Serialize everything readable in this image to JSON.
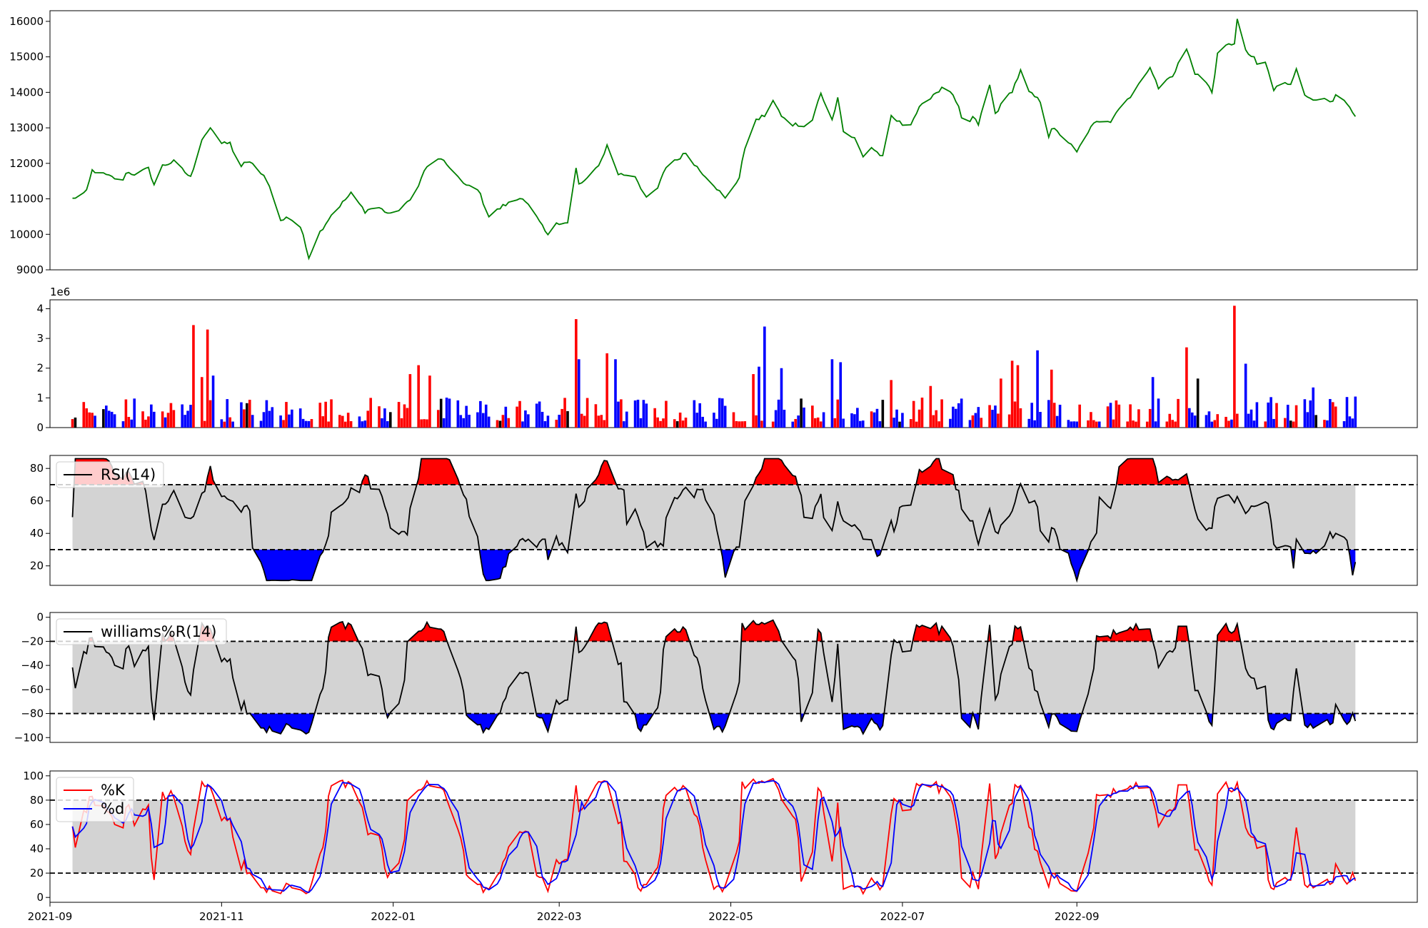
{
  "chart_data": [
    {
      "id": "price",
      "type": "line",
      "series": [
        {
          "color": "#008000",
          "values": []
        }
      ],
      "ylim": [
        9000,
        16300
      ],
      "yticks": [
        "9000",
        "10000",
        "11000",
        "12000",
        "13000",
        "14000",
        "15000",
        "16000"
      ],
      "anchors": [
        [
          "2021-09-09",
          11000
        ],
        [
          "2021-09-14",
          11200
        ],
        [
          "2021-09-16",
          11800
        ],
        [
          "2021-09-27",
          11500
        ],
        [
          "2021-09-28",
          11750
        ],
        [
          "2021-10-01",
          11700
        ],
        [
          "2021-10-06",
          11850
        ],
        [
          "2021-10-08",
          11400
        ],
        [
          "2021-10-10",
          11900
        ],
        [
          "2021-10-15",
          12050
        ],
        [
          "2021-10-21",
          11600
        ],
        [
          "2021-10-25",
          12700
        ],
        [
          "2021-10-28",
          13000
        ],
        [
          "2021-10-31",
          12550
        ],
        [
          "2021-11-04",
          12600
        ],
        [
          "2021-11-07",
          11700
        ],
        [
          "2021-11-09",
          12050
        ],
        [
          "2021-11-13",
          11950
        ],
        [
          "2021-11-17",
          11550
        ],
        [
          "2021-11-20",
          10900
        ],
        [
          "2021-11-21",
          10300
        ],
        [
          "2021-11-24",
          10500
        ],
        [
          "2021-11-28",
          10300
        ],
        [
          "2021-11-30",
          10000
        ],
        [
          "2021-12-02",
          9350
        ],
        [
          "2021-12-05",
          9950
        ],
        [
          "2021-12-10",
          10550
        ],
        [
          "2021-12-17",
          11150
        ],
        [
          "2021-12-22",
          10650
        ],
        [
          "2021-12-26",
          10800
        ],
        [
          "2021-12-31",
          10550
        ],
        [
          "2022-01-05",
          10800
        ],
        [
          "2022-01-10",
          11350
        ],
        [
          "2022-01-12",
          11800
        ],
        [
          "2022-01-17",
          12150
        ],
        [
          "2022-01-22",
          11850
        ],
        [
          "2022-01-26",
          11400
        ],
        [
          "2022-01-31",
          11300
        ],
        [
          "2022-02-04",
          10500
        ],
        [
          "2022-02-09",
          10800
        ],
        [
          "2022-02-16",
          11050
        ],
        [
          "2022-02-20",
          10600
        ],
        [
          "2022-02-25",
          9950
        ],
        [
          "2022-02-27",
          10350
        ],
        [
          "2022-03-05",
          10300
        ],
        [
          "2022-03-07",
          11850
        ],
        [
          "2022-03-08",
          11400
        ],
        [
          "2022-03-12",
          11600
        ],
        [
          "2022-03-16",
          12100
        ],
        [
          "2022-03-18",
          12500
        ],
        [
          "2022-03-22",
          11700
        ],
        [
          "2022-03-28",
          11650
        ],
        [
          "2022-04-01",
          11000
        ],
        [
          "2022-04-05",
          11300
        ],
        [
          "2022-04-09",
          12100
        ],
        [
          "2022-04-12",
          12100
        ],
        [
          "2022-04-15",
          12300
        ],
        [
          "2022-04-20",
          11800
        ],
        [
          "2022-04-24",
          11500
        ],
        [
          "2022-04-29",
          11000
        ],
        [
          "2022-05-04",
          11600
        ],
        [
          "2022-05-07",
          12850
        ],
        [
          "2022-05-10",
          13200
        ],
        [
          "2022-05-14",
          13400
        ],
        [
          "2022-05-16",
          13800
        ],
        [
          "2022-05-18",
          13450
        ],
        [
          "2022-05-22",
          13050
        ],
        [
          "2022-05-24",
          13100
        ],
        [
          "2022-05-29",
          12950
        ],
        [
          "2022-06-02",
          14000
        ],
        [
          "2022-06-06",
          13200
        ],
        [
          "2022-06-08",
          13900
        ],
        [
          "2022-06-10",
          12900
        ],
        [
          "2022-06-14",
          12700
        ],
        [
          "2022-06-17",
          12200
        ],
        [
          "2022-06-20",
          12450
        ],
        [
          "2022-06-25",
          12100
        ],
        [
          "2022-06-27",
          13300
        ],
        [
          "2022-07-03",
          13000
        ],
        [
          "2022-07-07",
          13550
        ],
        [
          "2022-07-12",
          13950
        ],
        [
          "2022-07-17",
          14200
        ],
        [
          "2022-07-21",
          13550
        ],
        [
          "2022-07-23",
          12950
        ],
        [
          "2022-07-26",
          13300
        ],
        [
          "2022-07-28",
          13100
        ],
        [
          "2022-08-01",
          14200
        ],
        [
          "2022-08-03",
          13400
        ],
        [
          "2022-08-06",
          13750
        ],
        [
          "2022-08-09",
          14050
        ],
        [
          "2022-08-12",
          14600
        ],
        [
          "2022-08-15",
          14000
        ],
        [
          "2022-08-19",
          13750
        ],
        [
          "2022-08-21",
          12550
        ],
        [
          "2022-08-23",
          13000
        ],
        [
          "2022-08-28",
          12700
        ],
        [
          "2022-09-01",
          12300
        ],
        [
          "2022-09-04",
          12800
        ],
        [
          "2022-09-07",
          13100
        ],
        [
          "2022-09-10",
          13250
        ],
        [
          "2022-09-13",
          13200
        ],
        [
          "2022-09-15",
          13450
        ],
        [
          "2022-09-20",
          13900
        ],
        [
          "2022-09-24",
          14300
        ],
        [
          "2022-09-27",
          14750
        ],
        [
          "2022-09-30",
          14100
        ],
        [
          "2022-10-03",
          14350
        ],
        [
          "2022-10-06",
          14550
        ],
        [
          "2022-10-09",
          15400
        ],
        [
          "2022-10-11",
          15000
        ],
        [
          "2022-10-13",
          14550
        ],
        [
          "2022-10-16",
          14400
        ],
        [
          "2022-10-19",
          14000
        ],
        [
          "2022-10-21",
          15050
        ],
        [
          "2022-10-24",
          15300
        ],
        [
          "2022-10-27",
          15400
        ],
        [
          "2022-10-28",
          16050
        ],
        [
          "2022-10-31",
          15150
        ],
        [
          "2022-11-03",
          14950
        ],
        [
          "2022-11-05",
          14600
        ],
        [
          "2022-11-07",
          14850
        ],
        [
          "2022-11-10",
          14050
        ],
        [
          "2022-11-12",
          14250
        ],
        [
          "2022-11-16",
          14250
        ],
        [
          "2022-11-18",
          14700
        ],
        [
          "2022-11-20",
          13900
        ],
        [
          "2022-11-23",
          13850
        ],
        [
          "2022-11-27",
          13800
        ],
        [
          "2022-12-01",
          13700
        ],
        [
          "2022-12-03",
          14100
        ],
        [
          "2022-12-05",
          13750
        ],
        [
          "2022-12-09",
          13300
        ]
      ]
    },
    {
      "id": "volume",
      "type": "bar",
      "ylim": [
        0,
        4.3
      ],
      "yticks": [
        "0",
        "1",
        "2",
        "3",
        "4"
      ],
      "offset_label": "1e6",
      "up_color": "#ff0000",
      "down_color": "#0000ff",
      "flat_color": "#000000",
      "spikes": [
        [
          "2021-10-23",
          3.45
        ],
        [
          "2021-10-27",
          3.3
        ],
        [
          "2021-10-25",
          1.7
        ],
        [
          "2021-10-29",
          1.75
        ],
        [
          "2022-01-07",
          1.8
        ],
        [
          "2022-01-10",
          2.1
        ],
        [
          "2022-01-15",
          1.75
        ],
        [
          "2022-03-06",
          3.65
        ],
        [
          "2022-03-08",
          2.3
        ],
        [
          "2022-03-18",
          2.5
        ],
        [
          "2022-03-21",
          2.3
        ],
        [
          "2022-04-09",
          0.9
        ],
        [
          "2022-05-09",
          1.8
        ],
        [
          "2022-05-11",
          2.05
        ],
        [
          "2022-05-13",
          3.4
        ],
        [
          "2022-05-19",
          2.0
        ],
        [
          "2022-06-05",
          2.3
        ],
        [
          "2022-06-09",
          2.2
        ],
        [
          "2022-06-26",
          1.6
        ],
        [
          "2022-07-11",
          1.4
        ],
        [
          "2022-08-06",
          1.65
        ],
        [
          "2022-08-09",
          2.25
        ],
        [
          "2022-08-11",
          2.1
        ],
        [
          "2022-08-18",
          2.6
        ],
        [
          "2022-08-23",
          1.95
        ],
        [
          "2022-09-28",
          1.7
        ],
        [
          "2022-10-09",
          2.7
        ],
        [
          "2022-10-14",
          1.65
        ],
        [
          "2022-10-27",
          4.1
        ],
        [
          "2022-10-30",
          2.15
        ],
        [
          "2022-11-24",
          1.35
        ]
      ]
    },
    {
      "id": "rsi",
      "type": "line",
      "legend": [
        "RSI(14)"
      ],
      "ylim": [
        8,
        88
      ],
      "yticks": [
        "20",
        "40",
        "60",
        "80"
      ],
      "bands": [
        30,
        70
      ],
      "series": [
        {
          "name": "RSI(14)",
          "color": "#000000"
        }
      ],
      "fill_above_color": "#ff0000",
      "fill_below_color": "#0000ff",
      "band_fill": "#d3d3d3"
    },
    {
      "id": "williams",
      "type": "line",
      "legend": [
        "williams%R(14)"
      ],
      "ylim": [
        -104,
        4
      ],
      "yticks": [
        "−100",
        "−80",
        "−60",
        "−40",
        "−20",
        "0"
      ],
      "bands": [
        -80,
        -20
      ],
      "series": [
        {
          "name": "williams%R(14)",
          "color": "#000000"
        }
      ],
      "fill_above_color": "#ff0000",
      "fill_below_color": "#0000ff",
      "band_fill": "#d3d3d3"
    },
    {
      "id": "stoch",
      "type": "line",
      "legend": [
        "%K",
        "%d"
      ],
      "ylim": [
        -4,
        104
      ],
      "yticks": [
        "0",
        "20",
        "40",
        "60",
        "80",
        "100"
      ],
      "bands": [
        20,
        80
      ],
      "series": [
        {
          "name": "%K",
          "color": "#ff0000"
        },
        {
          "name": "%d",
          "color": "#0000ff"
        }
      ],
      "band_fill": "#d3d3d3"
    }
  ],
  "x_axis": {
    "type": "date",
    "range": [
      "2021-09-01",
      "2022-12-31"
    ],
    "ticks": [
      {
        "date": "2021-09-01",
        "label": "2021-09"
      },
      {
        "date": "2021-11-01",
        "label": "2021-11"
      },
      {
        "date": "2022-01-01",
        "label": "2022-01"
      },
      {
        "date": "2022-03-01",
        "label": "2022-03"
      },
      {
        "date": "2022-05-01",
        "label": "2022-05"
      },
      {
        "date": "2022-07-01",
        "label": "2022-07"
      },
      {
        "date": "2022-09-01",
        "label": "2022-09"
      }
    ]
  }
}
